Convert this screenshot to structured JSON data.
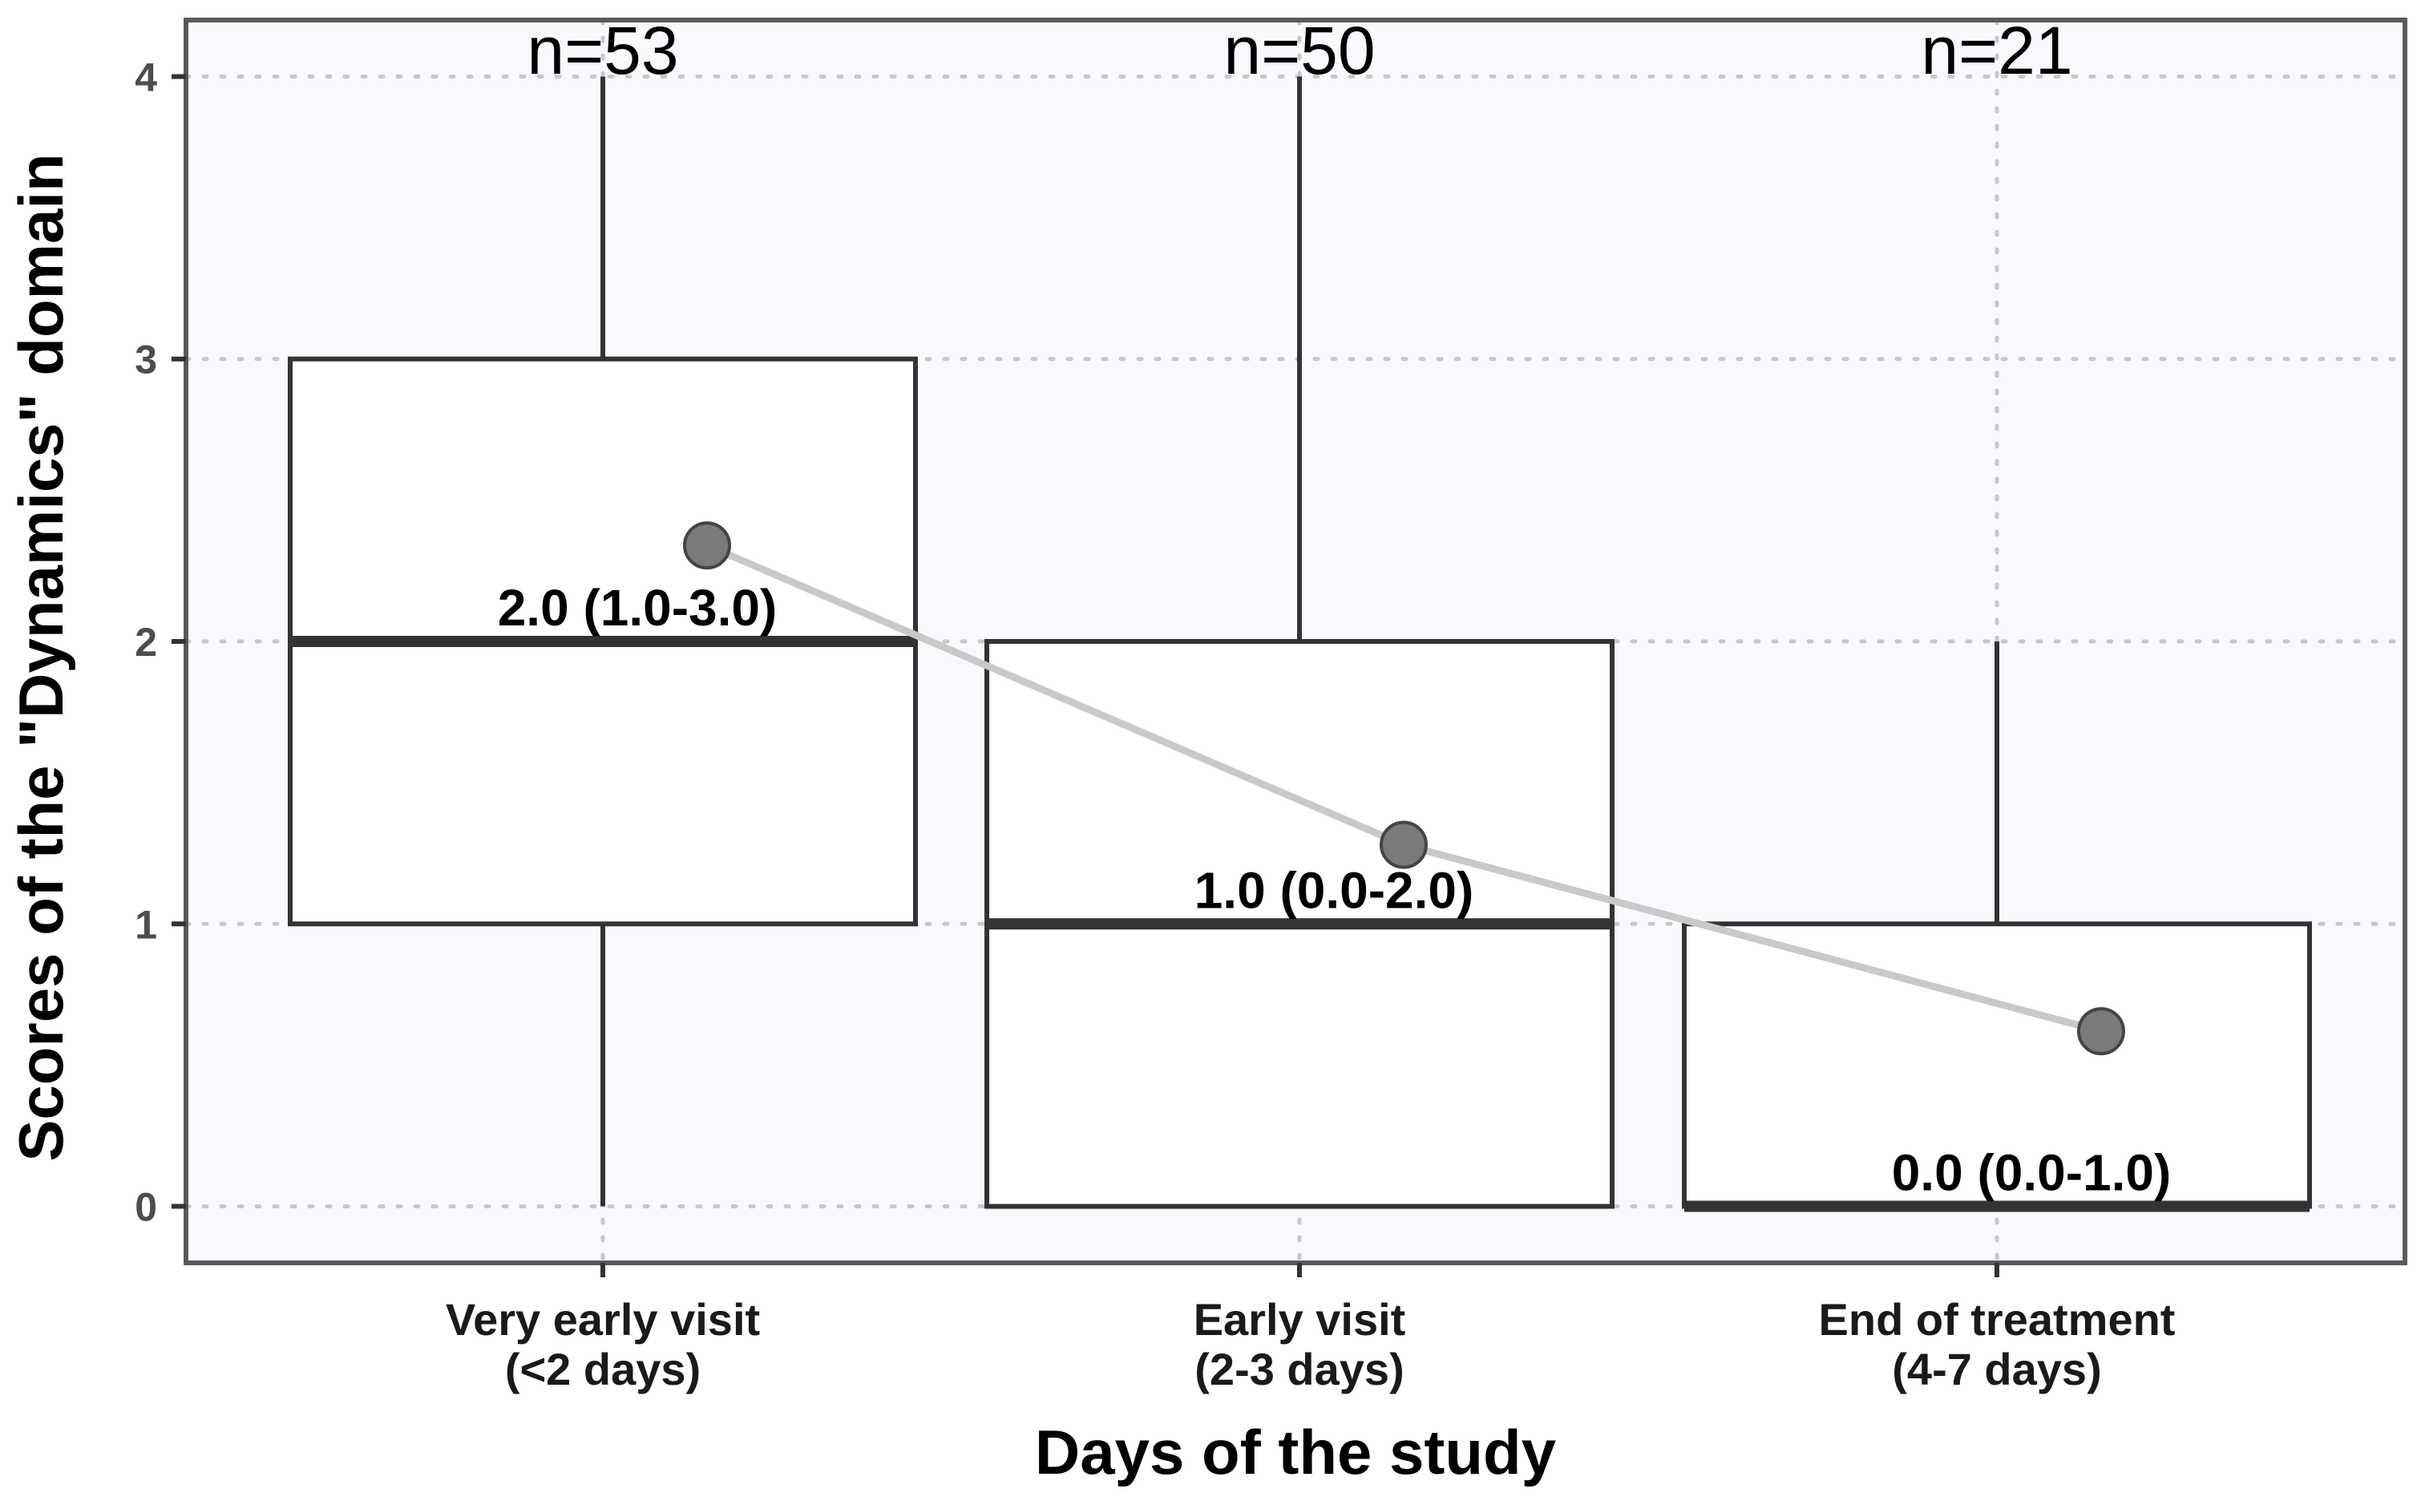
{
  "chart_data": {
    "type": "boxplot",
    "xlabel": "Days of the study",
    "ylabel": "Scores of the \"Dynamics\" domain",
    "ylim": [
      -0.2,
      4.2
    ],
    "y_ticks": [
      0,
      1,
      2,
      3,
      4
    ],
    "y_tick_labels": [
      "0",
      "1",
      "2",
      "3",
      "4"
    ],
    "grid": true,
    "categories": [
      {
        "label_line1": "Very early visit",
        "label_line2": "(<2 days)",
        "n_label": "n=53",
        "stat_label": "2.0  (1.0-3.0)",
        "min": 0,
        "q1": 1,
        "median": 2,
        "q3": 3,
        "max": 4,
        "mean": 2.34
      },
      {
        "label_line1": "Early visit",
        "label_line2": "(2-3 days)",
        "n_label": "n=50",
        "stat_label": "1.0  (0.0-2.0)",
        "min": 0,
        "q1": 0,
        "median": 1,
        "q3": 2,
        "max": 4,
        "mean": 1.28
      },
      {
        "label_line1": "End of treatment",
        "label_line2": "(4-7 days)",
        "n_label": "n=21",
        "stat_label": "0.0  (0.0-1.0)",
        "min": 0,
        "q1": 0,
        "median": 0,
        "q3": 1,
        "max": 2,
        "mean": 0.62
      }
    ],
    "colors": {
      "panel_background": "#f8f9fc",
      "panel_border": "#5a5a5a",
      "grid": "#c8c8c8",
      "box_stroke": "#333333",
      "box_fill": "#ffffff",
      "mean_line": "#c9c9c9",
      "mean_point": "#7a7a7a"
    }
  }
}
